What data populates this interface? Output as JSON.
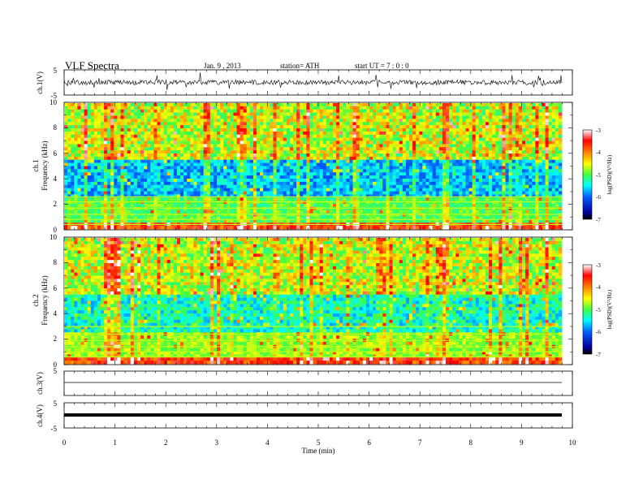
{
  "header": {
    "title": "VLF  Spectra",
    "date": "Jan.  9  , 2013",
    "station": "station= ATH",
    "start": "start  UT  =   7  : 0  : 0"
  },
  "chart_data": [
    {
      "type": "line",
      "panel": "ch1-waveform",
      "ylabel": "ch.1(V)",
      "ylim": [
        -5,
        5
      ],
      "yticks": [
        "5",
        "-5"
      ],
      "xlim": [
        0,
        10
      ],
      "description_level": 0
    },
    {
      "type": "heatmap",
      "panel": "ch1-spectrogram",
      "ylabel": "ch.1\nFrequency  (kHz)",
      "ylabel_top": "ch.1",
      "ylabel_bottom": "Frequency  (kHz)",
      "ylim": [
        0,
        10
      ],
      "yticks": [
        "0",
        "2",
        "4",
        "6",
        "8",
        "10"
      ],
      "xlim": [
        0,
        10
      ],
      "colorbar": {
        "label": "log(PSD)(V²/Hz)",
        "range": [
          -7,
          -3
        ],
        "ticks": [
          "-3",
          "-4",
          "-5",
          "-6",
          "-7"
        ]
      }
    },
    {
      "type": "heatmap",
      "panel": "ch2-spectrogram",
      "ylabel_top": "ch.2",
      "ylabel_bottom": "Frequency  (kHz)",
      "ylim": [
        0,
        10
      ],
      "yticks": [
        "0",
        "2",
        "4",
        "6",
        "8",
        "10"
      ],
      "xlim": [
        0,
        10
      ],
      "colorbar": {
        "label": "log(PSD)(V²/Hz)",
        "range": [
          -7,
          -3
        ],
        "ticks": [
          "-3",
          "-4",
          "-5",
          "-6",
          "-7"
        ]
      }
    },
    {
      "type": "line",
      "panel": "ch3-waveform",
      "ylabel": "ch.3(V)",
      "ylim": [
        -5,
        5
      ],
      "yticks": [
        "5"
      ],
      "level": 0
    },
    {
      "type": "line",
      "panel": "ch4-waveform",
      "ylabel": "ch.4(V)",
      "ylim": [
        -5,
        5
      ],
      "yticks": [
        "5",
        "-5"
      ],
      "level": 0
    }
  ],
  "xaxis": {
    "label": "Time  (min)",
    "ticks": [
      "0",
      "1",
      "2",
      "3",
      "4",
      "5",
      "6",
      "7",
      "8",
      "9",
      "10"
    ]
  },
  "colors": {
    "jet": [
      "#000080",
      "#0000ff",
      "#00a0ff",
      "#00ffff",
      "#80ff80",
      "#ffff00",
      "#ff8000",
      "#ff0000",
      "#ffe8e8"
    ]
  }
}
